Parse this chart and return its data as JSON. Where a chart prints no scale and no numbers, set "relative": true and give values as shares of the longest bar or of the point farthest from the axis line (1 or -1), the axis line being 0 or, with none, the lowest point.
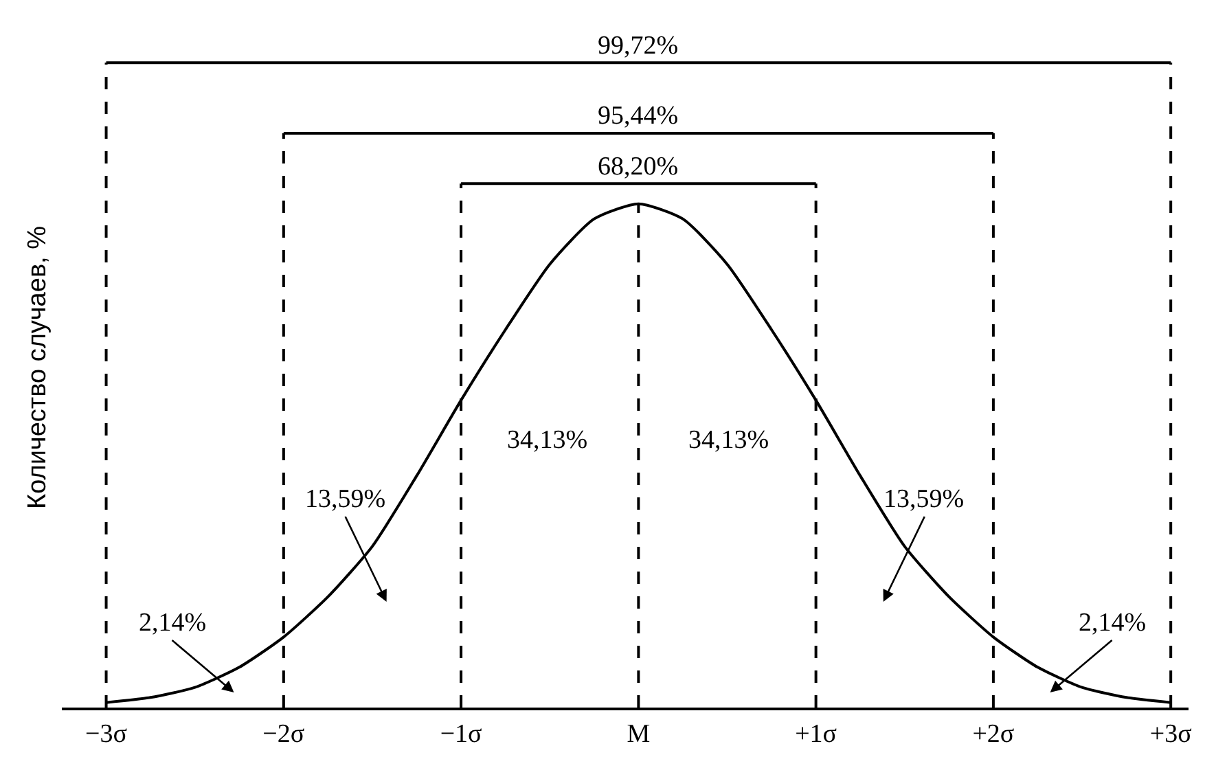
{
  "chart_data": {
    "type": "line",
    "ylabel": "Количество случаев, %",
    "relative": true,
    "line_style": "solid",
    "marker": "none",
    "xlim": [
      -3.25,
      3.1
    ],
    "xticks": [
      {
        "value": -3,
        "label": "−3σ"
      },
      {
        "value": -2,
        "label": "−2σ"
      },
      {
        "value": -1,
        "label": "−1σ"
      },
      {
        "value": 0,
        "label": "M"
      },
      {
        "value": 1,
        "label": "+1σ"
      },
      {
        "value": 2,
        "label": "+2σ"
      },
      {
        "value": 3,
        "label": "+3σ"
      }
    ],
    "series": [
      {
        "color": "#000000",
        "x": [
          -3,
          -2.75,
          -2.5,
          -2.25,
          -2,
          -1.75,
          -1.5,
          -1.25,
          -1,
          -0.75,
          -0.5,
          -0.25,
          0,
          0.25,
          0.5,
          0.75,
          1,
          1.25,
          1.5,
          1.75,
          2,
          2.25,
          2.5,
          2.75,
          3
        ],
        "values": [
          0.01,
          0.02,
          0.04,
          0.08,
          0.14,
          0.22,
          0.32,
          0.46,
          0.61,
          0.75,
          0.88,
          0.97,
          1,
          0.97,
          0.88,
          0.75,
          0.61,
          0.46,
          0.32,
          0.22,
          0.14,
          0.08,
          0.04,
          0.02,
          0.01
        ]
      }
    ],
    "ref_lines": [
      {
        "axis": "x",
        "value": -3,
        "line_style": "dashed"
      },
      {
        "axis": "x",
        "value": -2,
        "line_style": "dashed"
      },
      {
        "axis": "x",
        "value": -1,
        "line_style": "dashed"
      },
      {
        "axis": "x",
        "value": 0,
        "line_style": "dashed"
      },
      {
        "axis": "x",
        "value": 1,
        "line_style": "dashed"
      },
      {
        "axis": "x",
        "value": 2,
        "line_style": "dashed"
      },
      {
        "axis": "x",
        "value": 3,
        "line_style": "dashed"
      }
    ],
    "annotations": [
      "99,72%",
      "95,44%",
      "68,20%",
      "2,14%",
      "13,59%",
      "34,13%",
      "34,13%",
      "13,59%",
      "2,14%"
    ]
  }
}
